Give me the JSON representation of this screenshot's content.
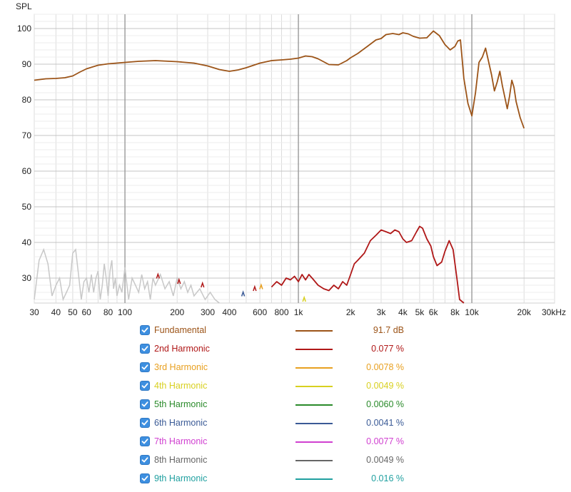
{
  "chart_data": {
    "type": "line",
    "ylabel": "SPL",
    "x_scale": "log",
    "xlim": [
      30,
      30000
    ],
    "ylim": [
      23,
      104
    ],
    "x_ticks": [
      {
        "value": 30,
        "label": "30"
      },
      {
        "value": 40,
        "label": "40"
      },
      {
        "value": 50,
        "label": "50"
      },
      {
        "value": 60,
        "label": "60"
      },
      {
        "value": 80,
        "label": "80"
      },
      {
        "value": 100,
        "label": "100"
      },
      {
        "value": 200,
        "label": "200"
      },
      {
        "value": 300,
        "label": "300"
      },
      {
        "value": 400,
        "label": "400"
      },
      {
        "value": 600,
        "label": "600"
      },
      {
        "value": 800,
        "label": "800"
      },
      {
        "value": 1000,
        "label": "1k"
      },
      {
        "value": 2000,
        "label": "2k"
      },
      {
        "value": 3000,
        "label": "3k"
      },
      {
        "value": 4000,
        "label": "4k"
      },
      {
        "value": 5000,
        "label": "5k"
      },
      {
        "value": 6000,
        "label": "6k"
      },
      {
        "value": 8000,
        "label": "8k"
      },
      {
        "value": 10000,
        "label": "10k"
      },
      {
        "value": 20000,
        "label": "20k"
      },
      {
        "value": 30000,
        "label": "30kHz"
      }
    ],
    "y_ticks": [
      30,
      40,
      50,
      60,
      70,
      80,
      90,
      100
    ],
    "grid": true,
    "legend_position": "bottom",
    "series": [
      {
        "name": "Fundamental",
        "value": "91.7 dB",
        "color": "#9c5418",
        "checked": true,
        "x": [
          30,
          35,
          40,
          45,
          50,
          55,
          60,
          70,
          80,
          100,
          120,
          150,
          200,
          250,
          300,
          350,
          400,
          450,
          500,
          600,
          700,
          800,
          900,
          1000,
          1100,
          1200,
          1300,
          1500,
          1700,
          1900,
          2000,
          2200,
          2500,
          2800,
          3000,
          3200,
          3500,
          3800,
          4000,
          4300,
          4600,
          5000,
          5500,
          6000,
          6500,
          7000,
          7500,
          8000,
          8300,
          8600,
          9000,
          9500,
          10000,
          10500,
          11000,
          11500,
          12000,
          13000,
          13500,
          14000,
          14500,
          15000,
          16000,
          16500,
          17000,
          17500,
          18000,
          19000,
          20000
        ],
        "y": [
          85.5,
          85.9,
          86.0,
          86.2,
          86.7,
          87.8,
          88.7,
          89.7,
          90.1,
          90.5,
          90.8,
          91.0,
          90.7,
          90.3,
          89.5,
          88.5,
          88.0,
          88.4,
          89.0,
          90.3,
          91.0,
          91.2,
          91.4,
          91.7,
          92.3,
          92.1,
          91.5,
          89.9,
          89.8,
          91.0,
          91.8,
          93.0,
          95.0,
          96.8,
          97.2,
          98.3,
          98.6,
          98.3,
          98.8,
          98.5,
          97.8,
          97.3,
          97.4,
          99.3,
          98.0,
          95.5,
          94.0,
          95.0,
          96.5,
          96.8,
          86.0,
          79.0,
          75.5,
          82.0,
          90.5,
          92.0,
          94.5,
          87.0,
          82.5,
          85.0,
          88.0,
          84.0,
          77.5,
          81.0,
          85.5,
          83.5,
          79.5,
          75.0,
          72.0
        ]
      },
      {
        "name": "2nd Harmonic",
        "value": "0.077 %",
        "color": "#b01818",
        "checked": true,
        "x": [
          700,
          750,
          800,
          850,
          900,
          950,
          1000,
          1050,
          1100,
          1150,
          1200,
          1300,
          1400,
          1500,
          1600,
          1700,
          1800,
          1900,
          2000,
          2100,
          2200,
          2400,
          2600,
          2800,
          3000,
          3200,
          3400,
          3600,
          3800,
          4000,
          4200,
          4500,
          4800,
          5000,
          5200,
          5500,
          5800,
          6000,
          6300,
          6700,
          7000,
          7400,
          7800,
          8200,
          8500,
          9000
        ],
        "y": [
          27.5,
          29.0,
          28.0,
          30.0,
          29.5,
          30.5,
          29.0,
          31.0,
          29.5,
          31.0,
          30.0,
          28.0,
          27.0,
          26.5,
          28.0,
          27.0,
          29.0,
          28.0,
          31.0,
          34.0,
          35.0,
          37.0,
          40.5,
          42.0,
          43.5,
          43.0,
          42.5,
          43.5,
          43.0,
          41.0,
          40.0,
          40.5,
          43.0,
          44.5,
          44.0,
          41.0,
          39.0,
          36.0,
          33.5,
          34.5,
          37.5,
          40.5,
          38.0,
          30.0,
          24.0,
          23.0
        ]
      },
      {
        "name": "3rd Harmonic",
        "value": "0.0078 %",
        "color": "#e8a020",
        "checked": true
      },
      {
        "name": "4th Harmonic",
        "value": "0.0049 %",
        "color": "#d8d020",
        "checked": true
      },
      {
        "name": "5th Harmonic",
        "value": "0.0060 %",
        "color": "#2a8a2a",
        "checked": true
      },
      {
        "name": "6th Harmonic",
        "value": "0.0041 %",
        "color": "#3a5a96",
        "checked": true
      },
      {
        "name": "7th Harmonic",
        "value": "0.0077 %",
        "color": "#d040d0",
        "checked": true
      },
      {
        "name": "8th Harmonic",
        "value": "0.0049 %",
        "color": "#666666",
        "checked": true
      },
      {
        "name": "9th Harmonic",
        "value": "0.016 %",
        "color": "#20a0a0",
        "checked": true
      }
    ],
    "noise_trace": {
      "color": "#c8c8c8",
      "x": [
        30,
        32,
        34,
        36,
        38,
        40,
        42,
        44,
        46,
        48,
        50,
        52,
        54,
        56,
        58,
        60,
        62,
        64,
        66,
        68,
        70,
        72,
        74,
        76,
        78,
        80,
        82,
        84,
        86,
        88,
        90,
        93,
        96,
        100,
        105,
        110,
        115,
        120,
        125,
        130,
        135,
        140,
        145,
        150,
        160,
        170,
        180,
        190,
        200,
        210,
        220,
        230,
        240,
        250,
        270,
        290,
        310,
        330,
        350
      ],
      "y": [
        24,
        35,
        38,
        34,
        25,
        28,
        30,
        24,
        26,
        28,
        37,
        38,
        31,
        24,
        29,
        30,
        26,
        31,
        26,
        30,
        32,
        24,
        28,
        34,
        30,
        25,
        32,
        35,
        27,
        30,
        25,
        28,
        26,
        33,
        24,
        30,
        28,
        26,
        31,
        27,
        29,
        24,
        30,
        28,
        31,
        27,
        29,
        25,
        30,
        27,
        29,
        26,
        28,
        25,
        27,
        24,
        26,
        24,
        23
      ]
    },
    "small_marks": [
      {
        "x": 155,
        "y": 30.5,
        "color": "#b01818"
      },
      {
        "x": 205,
        "y": 29.0,
        "color": "#b01818"
      },
      {
        "x": 280,
        "y": 28.0,
        "color": "#b01818"
      },
      {
        "x": 480,
        "y": 25.5,
        "color": "#3a5a96"
      },
      {
        "x": 560,
        "y": 27.0,
        "color": "#b01818"
      },
      {
        "x": 610,
        "y": 27.5,
        "color": "#e8a020"
      },
      {
        "x": 1080,
        "y": 24.0,
        "color": "#d8d020"
      }
    ]
  }
}
